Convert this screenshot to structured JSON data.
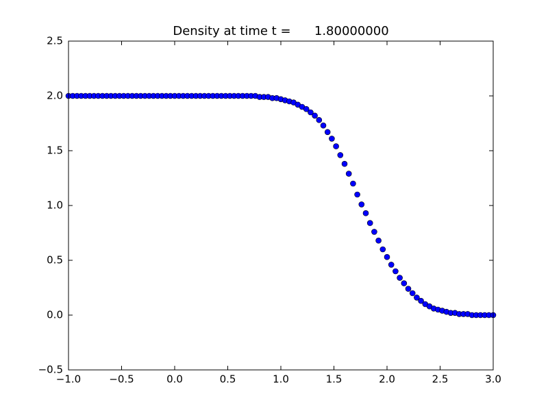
{
  "chart_data": {
    "type": "scatter",
    "title": "Density at time t =      1.80000000",
    "x": [
      -1,
      -0.96,
      -0.92,
      -0.88,
      -0.84,
      -0.8,
      -0.76,
      -0.72,
      -0.68,
      -0.64,
      -0.6,
      -0.56,
      -0.52,
      -0.48,
      -0.44,
      -0.4,
      -0.36,
      -0.32,
      -0.28,
      -0.24,
      -0.2,
      -0.16,
      -0.12,
      -0.08,
      -0.04,
      0,
      0.04,
      0.08,
      0.12,
      0.16,
      0.2,
      0.24,
      0.28,
      0.32,
      0.36,
      0.4,
      0.44,
      0.48,
      0.52,
      0.56,
      0.6,
      0.64,
      0.68,
      0.72,
      0.76,
      0.8,
      0.84,
      0.88,
      0.92,
      0.96,
      1,
      1.04,
      1.08,
      1.12,
      1.16,
      1.2,
      1.24,
      1.28,
      1.32,
      1.36,
      1.4,
      1.44,
      1.48,
      1.52,
      1.56,
      1.6,
      1.64,
      1.68,
      1.72,
      1.76,
      1.8,
      1.84,
      1.88,
      1.92,
      1.96,
      2,
      2.04,
      2.08,
      2.12,
      2.16,
      2.2,
      2.24,
      2.28,
      2.32,
      2.36,
      2.4,
      2.44,
      2.48,
      2.52,
      2.56,
      2.6,
      2.64,
      2.68,
      2.72,
      2.76,
      2.8,
      2.84,
      2.88,
      2.92,
      2.96,
      3
    ],
    "values": [
      2,
      2,
      2,
      2,
      2,
      2,
      2,
      2,
      2,
      2,
      2,
      2,
      2,
      2,
      2,
      2,
      2,
      2,
      2,
      2,
      2,
      2,
      2,
      2,
      2,
      2,
      2,
      2,
      2,
      2,
      2,
      2,
      2,
      2,
      2,
      2,
      2,
      2,
      2,
      2,
      2,
      2,
      2,
      2,
      2,
      1.99,
      1.99,
      1.99,
      1.98,
      1.98,
      1.97,
      1.96,
      1.95,
      1.94,
      1.92,
      1.9,
      1.88,
      1.85,
      1.82,
      1.78,
      1.73,
      1.67,
      1.61,
      1.54,
      1.46,
      1.38,
      1.29,
      1.2,
      1.1,
      1.01,
      0.93,
      0.84,
      0.76,
      0.68,
      0.6,
      0.53,
      0.46,
      0.4,
      0.34,
      0.29,
      0.24,
      0.2,
      0.16,
      0.13,
      0.1,
      0.08,
      0.06,
      0.05,
      0.04,
      0.03,
      0.02,
      0.02,
      0.01,
      0.01,
      0.01,
      0,
      0,
      0,
      0,
      0,
      0
    ],
    "color": "#0000ff",
    "xlim": [
      -1,
      3
    ],
    "ylim": [
      -0.5,
      2.5
    ],
    "xticks": [
      {
        "value": -1,
        "label": "−1.0"
      },
      {
        "value": -0.5,
        "label": "−0.5"
      },
      {
        "value": 0,
        "label": "0.0"
      },
      0.5,
      {
        "value": 1,
        "label": "1.0"
      },
      1.5,
      {
        "value": 2,
        "label": "2.0"
      },
      2.5,
      {
        "value": 3,
        "label": "3.0"
      }
    ],
    "yticks": [
      {
        "value": -0.5,
        "label": "−0.5"
      },
      {
        "value": 0,
        "label": "0.0"
      },
      0.5,
      {
        "value": 1,
        "label": "1.0"
      },
      1.5,
      {
        "value": 2,
        "label": "2.0"
      },
      2.5
    ],
    "grid": false
  }
}
